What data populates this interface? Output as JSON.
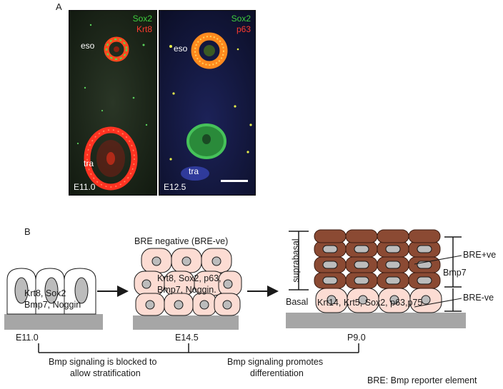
{
  "panel_a": {
    "letter": "A",
    "left_image": {
      "marker_green": "Sox2",
      "marker_red": "Krt8",
      "label_esophagus": "eso",
      "label_trachea": "tra",
      "stage": "E11.0"
    },
    "right_image": {
      "marker_green": "Sox2",
      "marker_red": "p63",
      "label_esophagus": "eso",
      "label_trachea": "tra",
      "stage": "E12.5"
    }
  },
  "panel_b": {
    "letter": "B",
    "stage1": {
      "markers_line1": "Krt8, Sox2",
      "markers_line2": "Bmp7, Noggin",
      "stage": "E11.0"
    },
    "stage2": {
      "title": "BRE negative (BRE-ve)",
      "markers_line1": "Krt8, Sox2, p63,",
      "markers_line2": "Bmp7, Noggin.",
      "stage": "E14.5"
    },
    "stage3": {
      "suprabasal": "suprabasal",
      "basal": "Basal",
      "markers": "Krt14, Krt5, Sox2, p63,p75",
      "bre_positive": "BRE+ve",
      "bmp7": "Bmp7",
      "bre_negative": "BRE-ve",
      "stage": "P9.0"
    },
    "bracket_left": {
      "line1": "Bmp signaling is blocked to",
      "line2": "allow  stratification"
    },
    "bracket_right": {
      "line1": "Bmp signaling promotes",
      "line2": "differentiation"
    },
    "footnote": "BRE: Bmp reporter element"
  },
  "colors": {
    "green": "#3ecf3e",
    "red": "#ff3b2f",
    "pink_cell": "#fcdcd3",
    "brown_cell": "#8b4a33",
    "nucleus": "#bcbcbc",
    "substrate": "#a6a6a6"
  }
}
